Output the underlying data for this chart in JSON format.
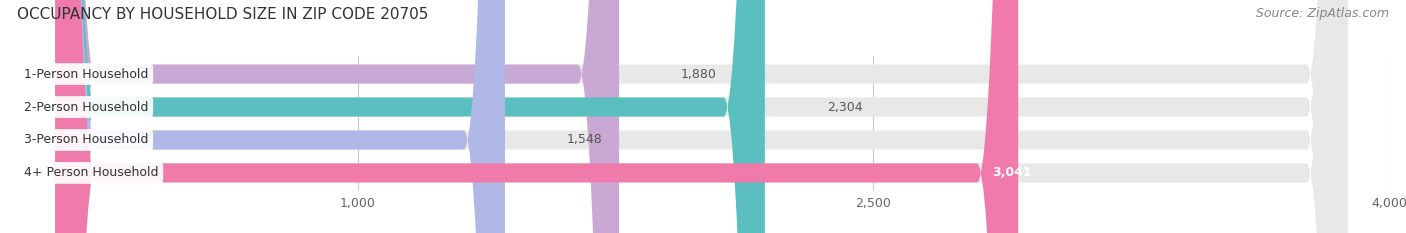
{
  "title": "OCCUPANCY BY HOUSEHOLD SIZE IN ZIP CODE 20705",
  "source": "Source: ZipAtlas.com",
  "categories": [
    "1-Person Household",
    "2-Person Household",
    "3-Person Household",
    "4+ Person Household"
  ],
  "values": [
    1880,
    2304,
    1548,
    3041
  ],
  "bar_colors": [
    "#c9a8d4",
    "#5bbfbf",
    "#b0b8e8",
    "#f07aaa"
  ],
  "bar_bg_color": "#e8e8e8",
  "xlim": [
    0,
    4000
  ],
  "xticks": [
    1000,
    2500,
    4000
  ],
  "title_fontsize": 11,
  "source_fontsize": 9,
  "label_fontsize": 9,
  "value_fontsize": 9,
  "tick_fontsize": 9,
  "background_color": "#ffffff",
  "bar_height": 0.58
}
